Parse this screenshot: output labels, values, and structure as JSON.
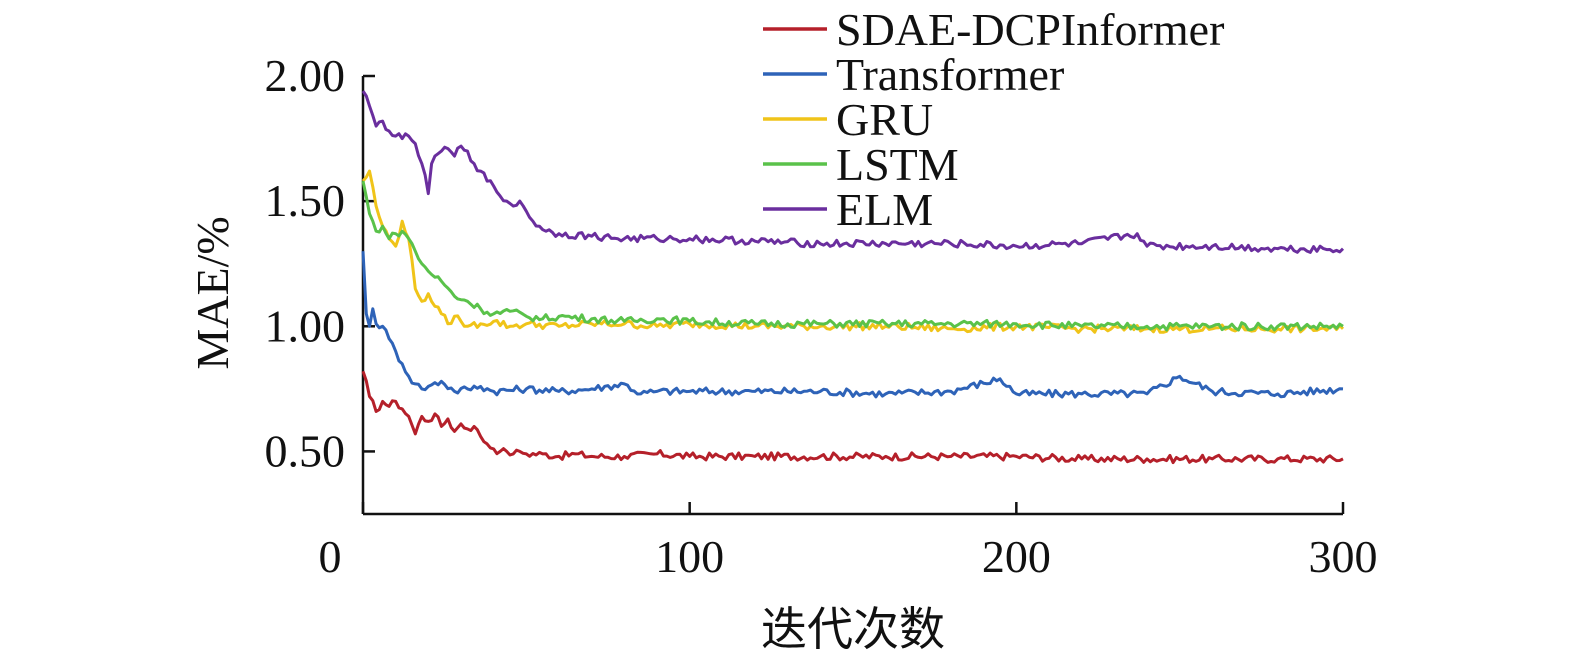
{
  "chart_data": {
    "type": "line",
    "title": "",
    "xlabel": "迭代次数",
    "ylabel": "MAE/%",
    "xlim": [
      0,
      300
    ],
    "ylim": [
      0.25,
      2.0
    ],
    "xticks": [
      0,
      100,
      200,
      300
    ],
    "xtick_labels": [
      "0",
      "100",
      "200",
      "300"
    ],
    "yticks": [
      0.5,
      1.0,
      1.5,
      2.0
    ],
    "ytick_labels": [
      "0.50",
      "1.00",
      "1.50",
      "2.00"
    ],
    "grid": false,
    "legend_position": "top-right",
    "series": [
      {
        "name": "SDAE-DCPInformer",
        "color": "#b5202a",
        "x": [
          0,
          2,
          4,
          6,
          8,
          10,
          12,
          14,
          16,
          18,
          20,
          22,
          24,
          26,
          28,
          30,
          32,
          34,
          36,
          38,
          40,
          42,
          44,
          46,
          48,
          50,
          55,
          60,
          65,
          70,
          80,
          90,
          100,
          120,
          140,
          160,
          180,
          200,
          220,
          240,
          260,
          280,
          300
        ],
        "y": [
          0.82,
          0.72,
          0.66,
          0.7,
          0.68,
          0.7,
          0.67,
          0.64,
          0.57,
          0.64,
          0.62,
          0.65,
          0.6,
          0.63,
          0.58,
          0.61,
          0.59,
          0.6,
          0.56,
          0.53,
          0.51,
          0.5,
          0.5,
          0.49,
          0.5,
          0.49,
          0.49,
          0.48,
          0.49,
          0.48,
          0.48,
          0.49,
          0.48,
          0.48,
          0.48,
          0.48,
          0.48,
          0.48,
          0.47,
          0.47,
          0.47,
          0.47,
          0.47
        ]
      },
      {
        "name": "Transformer",
        "color": "#2e63b8",
        "x": [
          0,
          1,
          2,
          3,
          4,
          6,
          8,
          10,
          12,
          14,
          16,
          18,
          20,
          24,
          28,
          32,
          36,
          40,
          50,
          60,
          70,
          80,
          85,
          90,
          100,
          120,
          140,
          160,
          180,
          195,
          200,
          220,
          240,
          250,
          260,
          280,
          300
        ],
        "y": [
          1.3,
          1.05,
          1.0,
          1.07,
          1.01,
          1.0,
          0.95,
          0.9,
          0.85,
          0.8,
          0.77,
          0.75,
          0.76,
          0.78,
          0.74,
          0.75,
          0.76,
          0.74,
          0.75,
          0.74,
          0.75,
          0.77,
          0.73,
          0.74,
          0.74,
          0.74,
          0.74,
          0.73,
          0.74,
          0.79,
          0.73,
          0.73,
          0.73,
          0.8,
          0.74,
          0.73,
          0.75
        ]
      },
      {
        "name": "GRU",
        "color": "#f0c419",
        "x": [
          0,
          2,
          4,
          6,
          8,
          10,
          12,
          14,
          16,
          18,
          20,
          22,
          24,
          26,
          28,
          30,
          32,
          36,
          40,
          45,
          50,
          60,
          70,
          80,
          90,
          100,
          120,
          140,
          160,
          180,
          200,
          220,
          240,
          260,
          280,
          300
        ],
        "y": [
          1.58,
          1.62,
          1.48,
          1.4,
          1.35,
          1.32,
          1.42,
          1.35,
          1.15,
          1.1,
          1.13,
          1.08,
          1.05,
          1.01,
          1.04,
          1.02,
          1.0,
          1.01,
          1.02,
          1.0,
          1.01,
          1.0,
          1.01,
          1.01,
          1.0,
          1.01,
          1.0,
          1.0,
          1.0,
          0.99,
          1.0,
          0.99,
          0.99,
          0.99,
          0.99,
          0.99
        ]
      },
      {
        "name": "LSTM",
        "color": "#5ac24a",
        "x": [
          0,
          2,
          4,
          6,
          8,
          10,
          12,
          14,
          16,
          18,
          20,
          24,
          28,
          32,
          36,
          40,
          45,
          50,
          55,
          60,
          70,
          80,
          90,
          100,
          120,
          140,
          160,
          180,
          200,
          220,
          240,
          260,
          280,
          300
        ],
        "y": [
          1.58,
          1.45,
          1.38,
          1.4,
          1.35,
          1.37,
          1.38,
          1.35,
          1.3,
          1.25,
          1.22,
          1.18,
          1.12,
          1.1,
          1.07,
          1.05,
          1.06,
          1.04,
          1.03,
          1.04,
          1.03,
          1.02,
          1.03,
          1.02,
          1.01,
          1.01,
          1.01,
          1.01,
          1.01,
          1.0,
          1.0,
          1.0,
          1.0,
          1.0
        ]
      },
      {
        "name": "ELM",
        "color": "#6a2e9e",
        "x": [
          0,
          2,
          4,
          6,
          8,
          10,
          12,
          14,
          16,
          18,
          20,
          21,
          22,
          24,
          26,
          28,
          30,
          32,
          34,
          36,
          38,
          40,
          42,
          44,
          46,
          48,
          50,
          52,
          54,
          56,
          60,
          70,
          80,
          90,
          100,
          120,
          140,
          160,
          180,
          200,
          220,
          237,
          240,
          260,
          280,
          300
        ],
        "y": [
          1.94,
          1.88,
          1.8,
          1.82,
          1.78,
          1.76,
          1.75,
          1.76,
          1.73,
          1.65,
          1.53,
          1.65,
          1.68,
          1.7,
          1.71,
          1.68,
          1.72,
          1.7,
          1.65,
          1.62,
          1.58,
          1.56,
          1.52,
          1.5,
          1.48,
          1.5,
          1.46,
          1.42,
          1.4,
          1.38,
          1.37,
          1.36,
          1.35,
          1.35,
          1.35,
          1.34,
          1.33,
          1.33,
          1.33,
          1.32,
          1.33,
          1.37,
          1.32,
          1.32,
          1.31,
          1.31
        ]
      }
    ]
  }
}
